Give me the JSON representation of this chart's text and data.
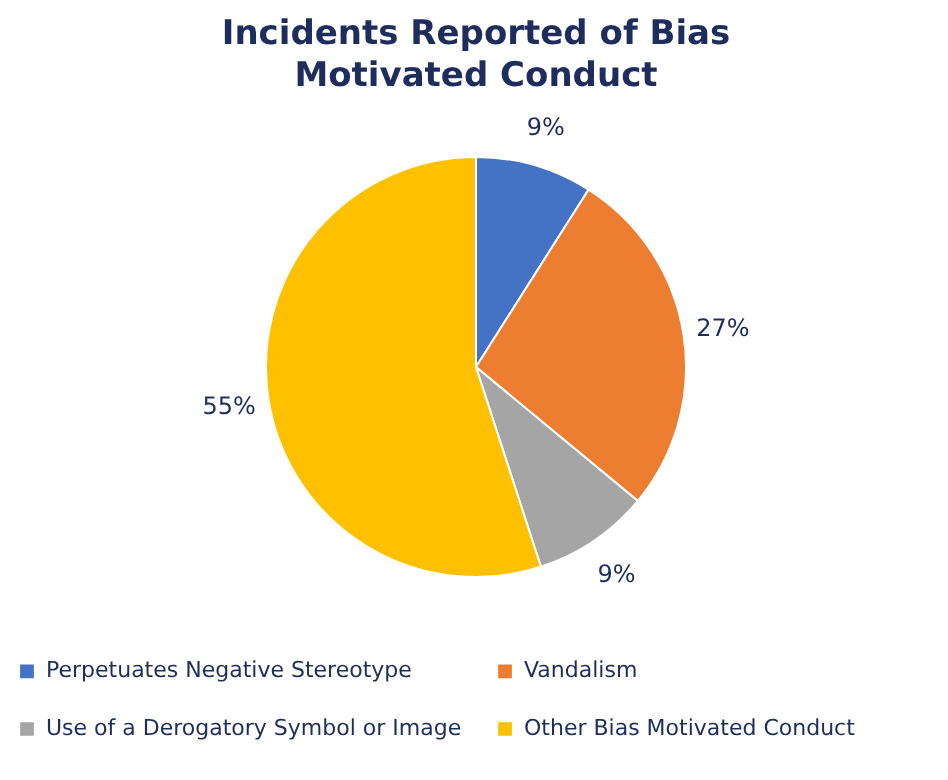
{
  "chart_data": {
    "type": "pie",
    "title": "Incidents Reported of Bias Motivated Conduct",
    "categories": [
      "Perpetuates Negative Stereotype",
      "Vandalism",
      "Use of a Derogatory Symbol or Image",
      "Other Bias Motivated Conduct"
    ],
    "values": [
      9,
      27,
      9,
      55
    ],
    "colors": [
      "#4472c4",
      "#ed7d31",
      "#a5a5a5",
      "#ffc000"
    ],
    "value_labels": [
      "9%",
      "27%",
      "9%",
      "55%"
    ],
    "legend": "bottom"
  }
}
